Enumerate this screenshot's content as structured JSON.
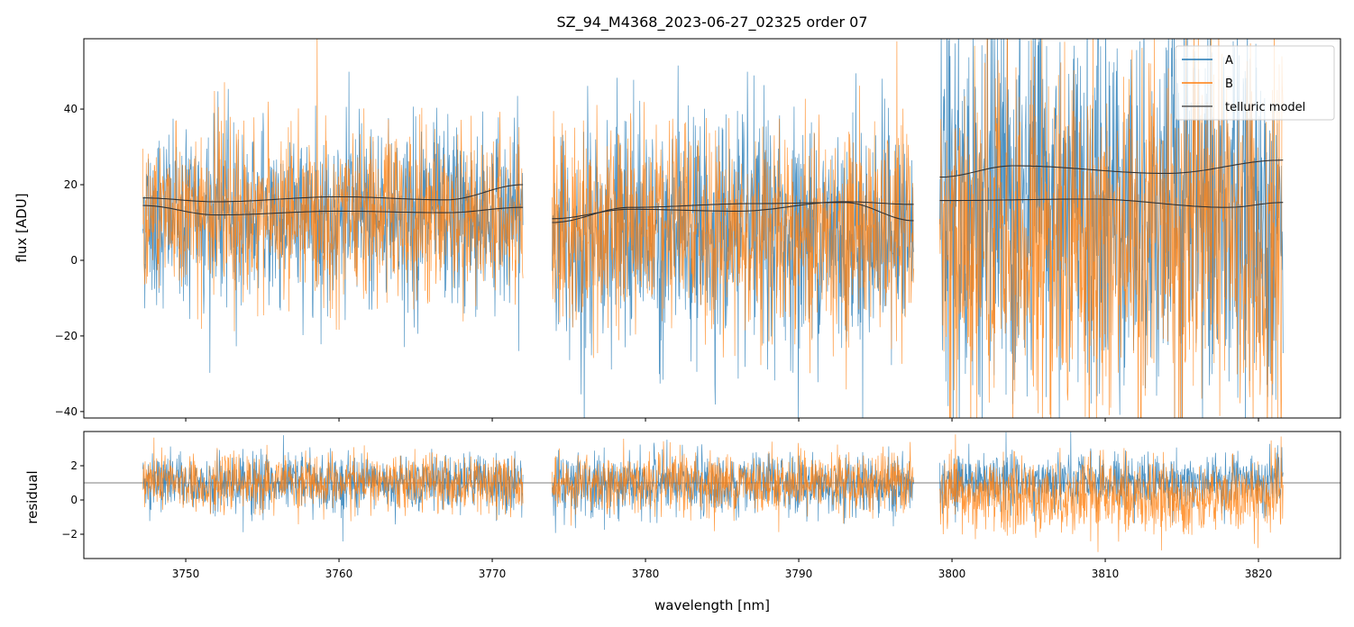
{
  "chart_data": {
    "type": "line",
    "title": "SZ_94_M4368_2023-06-27_02325  order 07",
    "xlabel": "wavelength [nm]",
    "xlim": [
      3743.35,
      3825.35
    ],
    "xticks": [
      3750,
      3760,
      3770,
      3780,
      3790,
      3800,
      3810,
      3820
    ],
    "colors": {
      "A": "#1f77b4",
      "B": "#ff7f0e",
      "telluric": "#333333"
    },
    "legend": {
      "position": "top-right",
      "entries": [
        "A",
        "B",
        "telluric model"
      ]
    },
    "segments": [
      {
        "x_range": [
          3747.2,
          3772.0
        ],
        "flux_mean": {
          "A": 12,
          "B": 12
        },
        "flux_std": {
          "A": 12,
          "B": 11
        },
        "resid_mean": {
          "A": 1.0,
          "B": 1.0
        },
        "resid_std": {
          "A": 0.85,
          "B": 0.8
        }
      },
      {
        "x_range": [
          3773.9,
          3797.5
        ],
        "flux_mean": {
          "A": 7,
          "B": 8
        },
        "flux_std": {
          "A": 15,
          "B": 14
        },
        "resid_mean": {
          "A": 0.9,
          "B": 1.0
        },
        "resid_std": {
          "A": 0.9,
          "B": 0.85
        }
      },
      {
        "x_range": [
          3799.2,
          3821.6
        ],
        "flux_mean": {
          "A": 14,
          "B": 6
        },
        "flux_std": {
          "A": 25,
          "B": 24
        },
        "resid_mean": {
          "A": 1.1,
          "B": 0.2
        },
        "resid_std": {
          "A": 0.8,
          "B": 1.1
        }
      }
    ],
    "telluric_model": [
      {
        "x": [
          3747.2,
          3752,
          3760,
          3767,
          3772.0
        ],
        "y": [
          16.5,
          15.5,
          16.8,
          16.0,
          20.0
        ]
      },
      {
        "x": [
          3747.2,
          3752,
          3760,
          3767,
          3772.0
        ],
        "y": [
          14.5,
          12.0,
          13.0,
          12.6,
          14.0
        ]
      },
      {
        "x": [
          3773.9,
          3779,
          3787,
          3793,
          3797.5
        ],
        "y": [
          10.0,
          14.0,
          15.0,
          15.3,
          10.5
        ]
      },
      {
        "x": [
          3773.9,
          3779,
          3786,
          3793,
          3797.5
        ],
        "y": [
          11.0,
          13.5,
          13.0,
          15.5,
          14.8
        ]
      },
      {
        "x": [
          3799.2,
          3804,
          3814,
          3821.6
        ],
        "y": [
          22.0,
          25.0,
          23.0,
          26.5
        ]
      },
      {
        "x": [
          3799.2,
          3809,
          3818,
          3821.6
        ],
        "y": [
          15.8,
          16.2,
          14.0,
          15.3
        ]
      }
    ],
    "panels": [
      {
        "name": "flux",
        "ylabel": "flux [ADU]",
        "ylim": [
          -41.7,
          58.6
        ],
        "yticks": [
          -40,
          -20,
          0,
          20,
          40
        ]
      },
      {
        "name": "residual",
        "ylabel": "residual",
        "ylim": [
          -3.42,
          4.0
        ],
        "yticks": [
          -2,
          0,
          2
        ],
        "hline": 1.0
      }
    ]
  },
  "tick_labels": {
    "x": [
      "3750",
      "3760",
      "3770",
      "3780",
      "3790",
      "3800",
      "3810",
      "3820"
    ],
    "flux": [
      "−40",
      "−20",
      "0",
      "20",
      "40"
    ],
    "residual": [
      "−2",
      "0",
      "2"
    ]
  }
}
